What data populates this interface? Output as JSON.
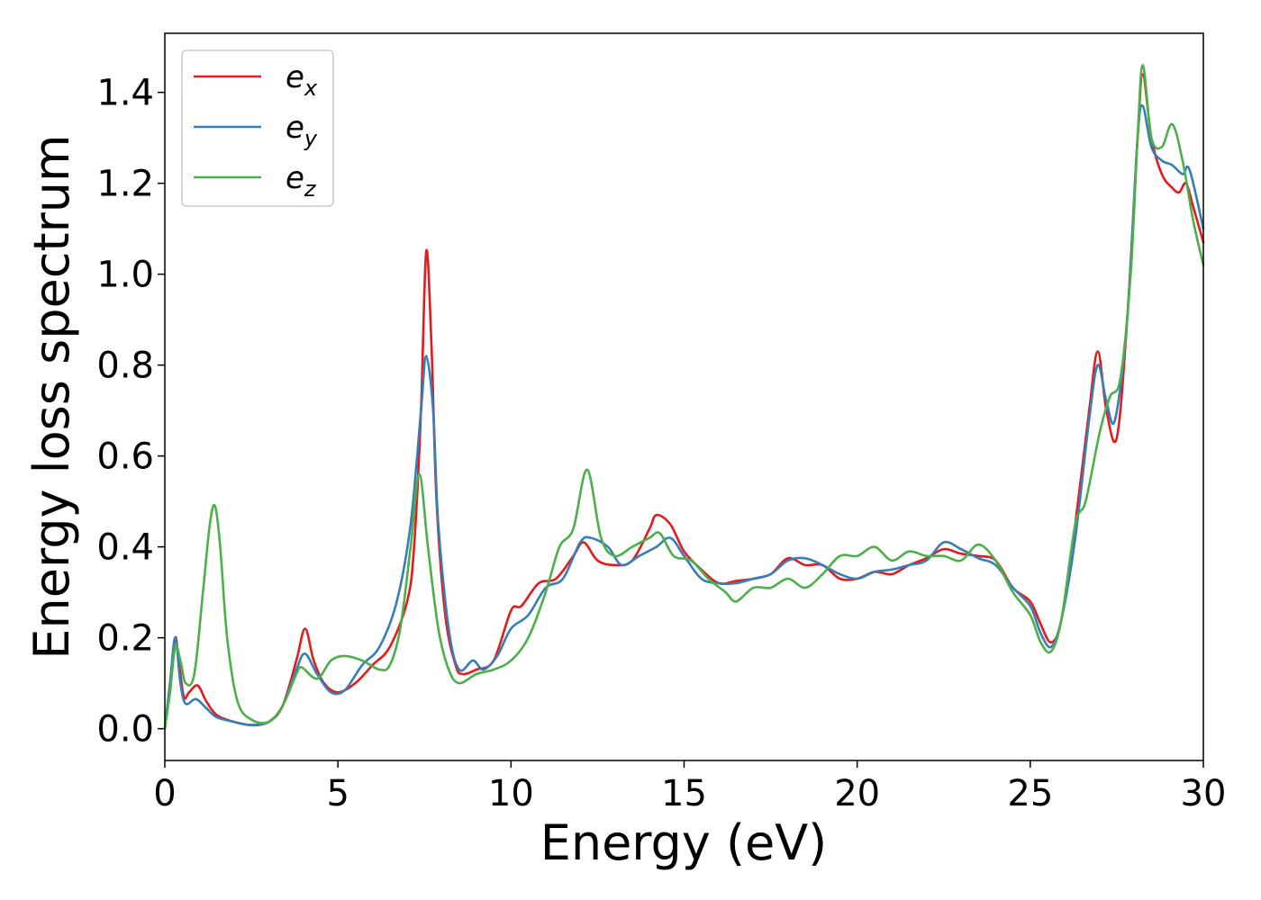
{
  "chart_data": {
    "type": "line",
    "title": "",
    "xlabel": "Energy (eV)",
    "ylabel": "Energy loss spectrum",
    "xlim": [
      0,
      30
    ],
    "ylim": [
      -0.07,
      1.53
    ],
    "xticks": [
      0,
      5,
      10,
      15,
      20,
      25,
      30
    ],
    "xtick_labels": [
      "0",
      "5",
      "10",
      "15",
      "20",
      "25",
      "30"
    ],
    "yticks": [
      0.0,
      0.2,
      0.4,
      0.6,
      0.8,
      1.0,
      1.2,
      1.4
    ],
    "ytick_labels": [
      "0.0",
      "0.2",
      "0.4",
      "0.6",
      "0.8",
      "1.0",
      "1.2",
      "1.4"
    ],
    "grid": false,
    "legend_position": "top-left",
    "series": [
      {
        "name": "e",
        "subscript": "x",
        "color": "#e41a1c",
        "points": [
          [
            0,
            0
          ],
          [
            0.15,
            0.1
          ],
          [
            0.3,
            0.2
          ],
          [
            0.4,
            0.15
          ],
          [
            0.55,
            0.07
          ],
          [
            0.7,
            0.08
          ],
          [
            0.95,
            0.095
          ],
          [
            1.2,
            0.06
          ],
          [
            1.5,
            0.03
          ],
          [
            2,
            0.015
          ],
          [
            2.5,
            0.008
          ],
          [
            3,
            0.015
          ],
          [
            3.4,
            0.05
          ],
          [
            3.8,
            0.15
          ],
          [
            4.05,
            0.22
          ],
          [
            4.3,
            0.15
          ],
          [
            4.6,
            0.1
          ],
          [
            5,
            0.08
          ],
          [
            5.5,
            0.1
          ],
          [
            6,
            0.14
          ],
          [
            6.5,
            0.18
          ],
          [
            7,
            0.28
          ],
          [
            7.2,
            0.4
          ],
          [
            7.4,
            0.7
          ],
          [
            7.55,
            1.05
          ],
          [
            7.7,
            0.85
          ],
          [
            7.85,
            0.5
          ],
          [
            8.1,
            0.25
          ],
          [
            8.4,
            0.14
          ],
          [
            8.6,
            0.12
          ],
          [
            9,
            0.13
          ],
          [
            9.5,
            0.15
          ],
          [
            10,
            0.26
          ],
          [
            10.3,
            0.27
          ],
          [
            10.8,
            0.32
          ],
          [
            11.3,
            0.33
          ],
          [
            11.8,
            0.38
          ],
          [
            12.1,
            0.41
          ],
          [
            12.5,
            0.37
          ],
          [
            13,
            0.36
          ],
          [
            13.5,
            0.37
          ],
          [
            14,
            0.44
          ],
          [
            14.2,
            0.47
          ],
          [
            14.6,
            0.45
          ],
          [
            15,
            0.39
          ],
          [
            15.5,
            0.35
          ],
          [
            16,
            0.32
          ],
          [
            16.5,
            0.325
          ],
          [
            17,
            0.33
          ],
          [
            17.5,
            0.34
          ],
          [
            18,
            0.375
          ],
          [
            18.5,
            0.36
          ],
          [
            19,
            0.36
          ],
          [
            19.5,
            0.33
          ],
          [
            20,
            0.33
          ],
          [
            20.5,
            0.345
          ],
          [
            21,
            0.34
          ],
          [
            21.5,
            0.36
          ],
          [
            22,
            0.375
          ],
          [
            22.5,
            0.395
          ],
          [
            23,
            0.385
          ],
          [
            23.5,
            0.38
          ],
          [
            24,
            0.37
          ],
          [
            24.5,
            0.31
          ],
          [
            25,
            0.28
          ],
          [
            25.3,
            0.23
          ],
          [
            25.6,
            0.19
          ],
          [
            25.9,
            0.24
          ],
          [
            26.3,
            0.45
          ],
          [
            26.7,
            0.7
          ],
          [
            26.95,
            0.83
          ],
          [
            27.2,
            0.7
          ],
          [
            27.5,
            0.64
          ],
          [
            27.8,
            0.9
          ],
          [
            28.1,
            1.3
          ],
          [
            28.25,
            1.44
          ],
          [
            28.5,
            1.3
          ],
          [
            28.8,
            1.22
          ],
          [
            29.1,
            1.19
          ],
          [
            29.3,
            1.18
          ],
          [
            29.5,
            1.2
          ],
          [
            29.7,
            1.15
          ],
          [
            30,
            1.07
          ]
        ]
      },
      {
        "name": "e",
        "subscript": "y",
        "color": "#377eb8",
        "points": [
          [
            0,
            0
          ],
          [
            0.15,
            0.1
          ],
          [
            0.3,
            0.2
          ],
          [
            0.45,
            0.1
          ],
          [
            0.6,
            0.055
          ],
          [
            0.9,
            0.065
          ],
          [
            1.2,
            0.045
          ],
          [
            1.5,
            0.025
          ],
          [
            2,
            0.015
          ],
          [
            2.5,
            0.008
          ],
          [
            3,
            0.015
          ],
          [
            3.4,
            0.05
          ],
          [
            3.8,
            0.13
          ],
          [
            4.05,
            0.165
          ],
          [
            4.4,
            0.12
          ],
          [
            4.8,
            0.08
          ],
          [
            5.2,
            0.085
          ],
          [
            5.7,
            0.14
          ],
          [
            6.2,
            0.18
          ],
          [
            6.7,
            0.28
          ],
          [
            7.1,
            0.45
          ],
          [
            7.4,
            0.7
          ],
          [
            7.55,
            0.82
          ],
          [
            7.75,
            0.7
          ],
          [
            7.9,
            0.45
          ],
          [
            8.2,
            0.22
          ],
          [
            8.5,
            0.13
          ],
          [
            8.9,
            0.15
          ],
          [
            9.2,
            0.13
          ],
          [
            9.6,
            0.16
          ],
          [
            10,
            0.22
          ],
          [
            10.5,
            0.25
          ],
          [
            11,
            0.31
          ],
          [
            11.5,
            0.33
          ],
          [
            12,
            0.41
          ],
          [
            12.3,
            0.42
          ],
          [
            12.8,
            0.4
          ],
          [
            13.2,
            0.36
          ],
          [
            13.7,
            0.38
          ],
          [
            14.2,
            0.4
          ],
          [
            14.6,
            0.42
          ],
          [
            15,
            0.38
          ],
          [
            15.5,
            0.33
          ],
          [
            16,
            0.32
          ],
          [
            16.5,
            0.32
          ],
          [
            17,
            0.33
          ],
          [
            17.5,
            0.34
          ],
          [
            18,
            0.37
          ],
          [
            18.5,
            0.375
          ],
          [
            19,
            0.36
          ],
          [
            19.5,
            0.34
          ],
          [
            20,
            0.33
          ],
          [
            20.5,
            0.345
          ],
          [
            21,
            0.35
          ],
          [
            21.5,
            0.36
          ],
          [
            22,
            0.37
          ],
          [
            22.5,
            0.41
          ],
          [
            23,
            0.395
          ],
          [
            23.5,
            0.375
          ],
          [
            24,
            0.36
          ],
          [
            24.5,
            0.31
          ],
          [
            25,
            0.27
          ],
          [
            25.3,
            0.21
          ],
          [
            25.6,
            0.18
          ],
          [
            25.9,
            0.24
          ],
          [
            26.3,
            0.42
          ],
          [
            26.7,
            0.68
          ],
          [
            26.95,
            0.8
          ],
          [
            27.2,
            0.72
          ],
          [
            27.45,
            0.68
          ],
          [
            27.8,
            0.9
          ],
          [
            28.1,
            1.3
          ],
          [
            28.25,
            1.37
          ],
          [
            28.5,
            1.28
          ],
          [
            28.8,
            1.25
          ],
          [
            29.1,
            1.24
          ],
          [
            29.4,
            1.22
          ],
          [
            29.6,
            1.23
          ],
          [
            30,
            1.1
          ]
        ]
      },
      {
        "name": "e",
        "subscript": "z",
        "color": "#4daf4a",
        "points": [
          [
            0,
            0
          ],
          [
            0.15,
            0.08
          ],
          [
            0.3,
            0.18
          ],
          [
            0.45,
            0.15
          ],
          [
            0.6,
            0.1
          ],
          [
            0.85,
            0.12
          ],
          [
            1.1,
            0.3
          ],
          [
            1.3,
            0.45
          ],
          [
            1.45,
            0.49
          ],
          [
            1.6,
            0.4
          ],
          [
            1.8,
            0.2
          ],
          [
            2.1,
            0.06
          ],
          [
            2.5,
            0.02
          ],
          [
            3,
            0.015
          ],
          [
            3.4,
            0.05
          ],
          [
            3.8,
            0.12
          ],
          [
            3.95,
            0.135
          ],
          [
            4.4,
            0.11
          ],
          [
            4.8,
            0.15
          ],
          [
            5.2,
            0.16
          ],
          [
            5.7,
            0.15
          ],
          [
            6.2,
            0.13
          ],
          [
            6.5,
            0.14
          ],
          [
            6.8,
            0.22
          ],
          [
            7.1,
            0.4
          ],
          [
            7.35,
            0.56
          ],
          [
            7.6,
            0.4
          ],
          [
            7.9,
            0.22
          ],
          [
            8.2,
            0.13
          ],
          [
            8.5,
            0.1
          ],
          [
            9,
            0.12
          ],
          [
            9.5,
            0.13
          ],
          [
            10,
            0.15
          ],
          [
            10.5,
            0.2
          ],
          [
            11,
            0.3
          ],
          [
            11.4,
            0.4
          ],
          [
            11.8,
            0.44
          ],
          [
            12.2,
            0.57
          ],
          [
            12.6,
            0.42
          ],
          [
            13,
            0.38
          ],
          [
            13.5,
            0.4
          ],
          [
            14,
            0.42
          ],
          [
            14.3,
            0.43
          ],
          [
            14.7,
            0.38
          ],
          [
            15.2,
            0.37
          ],
          [
            15.7,
            0.33
          ],
          [
            16.2,
            0.3
          ],
          [
            16.5,
            0.28
          ],
          [
            17,
            0.31
          ],
          [
            17.5,
            0.31
          ],
          [
            18,
            0.33
          ],
          [
            18.5,
            0.31
          ],
          [
            19,
            0.34
          ],
          [
            19.5,
            0.38
          ],
          [
            20,
            0.38
          ],
          [
            20.5,
            0.4
          ],
          [
            21,
            0.37
          ],
          [
            21.5,
            0.39
          ],
          [
            22,
            0.38
          ],
          [
            22.5,
            0.38
          ],
          [
            23,
            0.37
          ],
          [
            23.5,
            0.405
          ],
          [
            24,
            0.37
          ],
          [
            24.5,
            0.3
          ],
          [
            25,
            0.25
          ],
          [
            25.3,
            0.19
          ],
          [
            25.6,
            0.17
          ],
          [
            25.9,
            0.24
          ],
          [
            26.3,
            0.45
          ],
          [
            26.6,
            0.5
          ],
          [
            27,
            0.65
          ],
          [
            27.3,
            0.73
          ],
          [
            27.6,
            0.77
          ],
          [
            27.9,
            1.0
          ],
          [
            28.1,
            1.3
          ],
          [
            28.25,
            1.46
          ],
          [
            28.5,
            1.3
          ],
          [
            28.8,
            1.28
          ],
          [
            29.1,
            1.33
          ],
          [
            29.4,
            1.25
          ],
          [
            29.7,
            1.12
          ],
          [
            30,
            1.02
          ]
        ]
      }
    ]
  }
}
